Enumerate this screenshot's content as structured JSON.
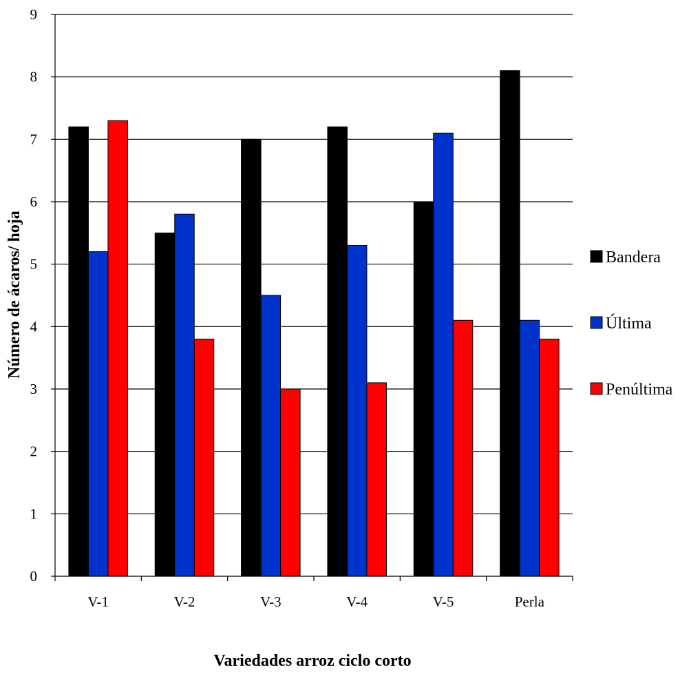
{
  "chart_data": {
    "type": "bar",
    "title": "",
    "xlabel": "Variedades arroz ciclo corto",
    "ylabel": "Número de ácaros/ hoja",
    "categories": [
      "V-1",
      "V-2",
      "V-3",
      "V-4",
      "V-5",
      "Perla"
    ],
    "series": [
      {
        "name": "Bandera",
        "color": "#000000",
        "values": [
          7.2,
          5.5,
          7.0,
          7.2,
          6.0,
          8.1
        ]
      },
      {
        "name": "Última",
        "color": "#0033cc",
        "values": [
          5.2,
          5.8,
          4.5,
          5.3,
          7.1,
          4.1
        ]
      },
      {
        "name": "Penúltima",
        "color": "#ff0000",
        "values": [
          7.3,
          3.8,
          3.0,
          3.1,
          4.1,
          3.8
        ]
      }
    ],
    "ylim": [
      0,
      9
    ],
    "yticks": [
      "0",
      "1",
      "2",
      "3",
      "4",
      "5",
      "6",
      "7",
      "8",
      "9"
    ],
    "grid": true,
    "legend_position": "right"
  }
}
